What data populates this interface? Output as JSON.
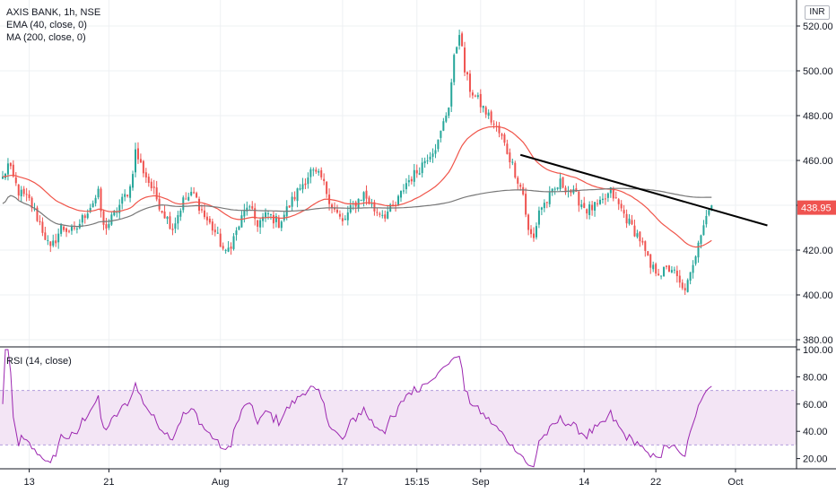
{
  "window": {
    "symbol": "AXIS BANK, 1h, NSE",
    "currency": "INR"
  },
  "legend": {
    "main": [
      "AXIS BANK, 1h, NSE",
      "EMA (40, close, 0)",
      "MA (200, close, 0)"
    ],
    "rsi": "RSI (14, close)"
  },
  "colors": {
    "up": "#26a69a",
    "down": "#ef5350",
    "ema": "#f0554a",
    "ma": "#787878",
    "rsi": "#9c27b0",
    "rsi_band": "#f3e5f5",
    "trendline": "#000000",
    "badge": "#ef5350",
    "grid": "#eef0f3"
  },
  "chart_data": [
    {
      "type": "candlestick",
      "title": "AXIS BANK, 1h, NSE",
      "ylim": [
        380,
        525
      ],
      "yticks": [
        "520.00",
        "500.00",
        "480.00",
        "460.00",
        "440.00",
        "420.00",
        "400.00",
        "380.00"
      ],
      "xticks": [
        "13",
        "21",
        "Aug",
        "17",
        "15:15",
        "Sep",
        "14",
        "22",
        "Oct"
      ],
      "last_price": "438.95",
      "anchors": [
        [
          0,
          452
        ],
        [
          2,
          458
        ],
        [
          6,
          446
        ],
        [
          10,
          442
        ],
        [
          14,
          432
        ],
        [
          18,
          420
        ],
        [
          22,
          430
        ],
        [
          27,
          428
        ],
        [
          32,
          438
        ],
        [
          36,
          445
        ],
        [
          38,
          430
        ],
        [
          40,
          432
        ],
        [
          44,
          440
        ],
        [
          48,
          448
        ],
        [
          50,
          464
        ],
        [
          52,
          458
        ],
        [
          56,
          448
        ],
        [
          60,
          438
        ],
        [
          64,
          430
        ],
        [
          68,
          442
        ],
        [
          72,
          445
        ],
        [
          76,
          435
        ],
        [
          80,
          428
        ],
        [
          84,
          418
        ],
        [
          88,
          428
        ],
        [
          92,
          440
        ],
        [
          96,
          432
        ],
        [
          100,
          436
        ],
        [
          104,
          432
        ],
        [
          108,
          440
        ],
        [
          112,
          448
        ],
        [
          116,
          455
        ],
        [
          120,
          452
        ],
        [
          124,
          440
        ],
        [
          128,
          432
        ],
        [
          132,
          440
        ],
        [
          136,
          445
        ],
        [
          140,
          438
        ],
        [
          144,
          436
        ],
        [
          148,
          440
        ],
        [
          152,
          450
        ],
        [
          156,
          455
        ],
        [
          160,
          462
        ],
        [
          164,
          468
        ],
        [
          168,
          485
        ],
        [
          170,
          505
        ],
        [
          172,
          518
        ],
        [
          174,
          500
        ],
        [
          176,
          492
        ],
        [
          180,
          485
        ],
        [
          184,
          478
        ],
        [
          188,
          470
        ],
        [
          192,
          458
        ],
        [
          196,
          445
        ],
        [
          198,
          428
        ],
        [
          200,
          425
        ],
        [
          202,
          438
        ],
        [
          205,
          442
        ],
        [
          210,
          450
        ],
        [
          215,
          445
        ],
        [
          220,
          438
        ],
        [
          225,
          440
        ],
        [
          229,
          446
        ],
        [
          232,
          440
        ],
        [
          236,
          432
        ],
        [
          240,
          425
        ],
        [
          244,
          412
        ],
        [
          248,
          410
        ],
        [
          252,
          412
        ],
        [
          256,
          402
        ],
        [
          258,
          405
        ],
        [
          260,
          412
        ],
        [
          262,
          425
        ],
        [
          265,
          436
        ],
        [
          267,
          440
        ]
      ],
      "n_bars": 268,
      "series": [
        {
          "name": "EMA (40, close, 0)",
          "kind": "ema",
          "period": 40
        },
        {
          "name": "MA (200, close, 0)",
          "kind": "sma",
          "period": 200
        }
      ],
      "trendline": {
        "from": [
          195,
          462.5
        ],
        "to": [
          288,
          431
        ]
      }
    },
    {
      "type": "line",
      "title": "RSI (14, close)",
      "ylim": [
        12,
        100
      ],
      "yticks": [
        "100.00",
        "80.00",
        "60.00",
        "40.00",
        "20.00"
      ],
      "band": [
        30,
        70
      ],
      "period": 14
    }
  ]
}
